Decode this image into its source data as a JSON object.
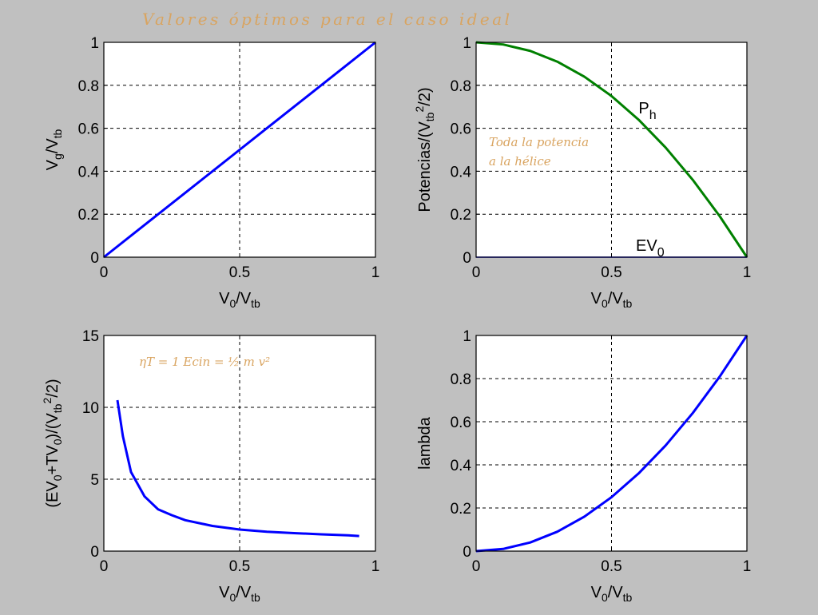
{
  "figure": {
    "handwritten_title": "Valores óptimos para el caso ideal",
    "background": "#c0c0c0",
    "colors": {
      "blue": "#0000ff",
      "green": "#008000",
      "handwriting": "#d9a460"
    }
  },
  "chart_data": [
    {
      "type": "line",
      "ylabel": "Vg/Vtb",
      "xlabel": "V0/Vtb",
      "xlim": [
        0,
        1
      ],
      "ylim": [
        0,
        1
      ],
      "x_ticks": [
        "0",
        "0.5",
        "1"
      ],
      "y_ticks": [
        "0",
        "0.2",
        "0.4",
        "0.6",
        "0.8",
        "1"
      ],
      "grid": true,
      "series": [
        {
          "color": "#0000ff",
          "x": [
            0,
            0.1,
            0.2,
            0.3,
            0.4,
            0.5,
            0.6,
            0.7,
            0.8,
            0.9,
            1.0
          ],
          "y": [
            0,
            0.1,
            0.2,
            0.3,
            0.4,
            0.5,
            0.6,
            0.7,
            0.8,
            0.9,
            1.0
          ]
        }
      ],
      "annotations": []
    },
    {
      "type": "line",
      "ylabel": "Potencias/(Vtb²/2)",
      "xlabel": "V0/Vtb",
      "xlim": [
        0,
        1
      ],
      "ylim": [
        0,
        1
      ],
      "x_ticks": [
        "0",
        "0.5",
        "1"
      ],
      "y_ticks": [
        "0",
        "0.2",
        "0.4",
        "0.6",
        "0.8",
        "1"
      ],
      "grid": true,
      "series": [
        {
          "name": "Ph",
          "color": "#008000",
          "x": [
            0,
            0.1,
            0.2,
            0.3,
            0.4,
            0.5,
            0.6,
            0.7,
            0.8,
            0.9,
            1.0
          ],
          "y": [
            1,
            0.99,
            0.96,
            0.91,
            0.84,
            0.75,
            0.64,
            0.51,
            0.36,
            0.19,
            0
          ]
        },
        {
          "name": "EV0",
          "color": "#0000ff",
          "x": [
            0,
            1
          ],
          "y": [
            0,
            0
          ]
        }
      ],
      "annotations": [
        {
          "text": "Ph",
          "x": 0.6,
          "y": 0.67
        },
        {
          "text": "EV0",
          "x": 0.59,
          "y": 0.03
        }
      ],
      "handwritten_note": [
        "Toda la potencia",
        "a la hélice"
      ]
    },
    {
      "type": "line",
      "ylabel": "(EV0+TV0)/(Vtb²/2)",
      "xlabel": "V0/Vtb",
      "xlim": [
        0,
        1
      ],
      "ylim": [
        0,
        15
      ],
      "x_ticks": [
        "0",
        "0.5",
        "1"
      ],
      "y_ticks": [
        "0",
        "5",
        "10",
        "15"
      ],
      "grid": true,
      "series": [
        {
          "color": "#0000ff",
          "x": [
            0.05,
            0.07,
            0.1,
            0.15,
            0.2,
            0.25,
            0.3,
            0.4,
            0.5,
            0.6,
            0.7,
            0.8,
            0.9,
            0.94
          ],
          "y": [
            10.5,
            8.0,
            5.5,
            3.8,
            2.9,
            2.5,
            2.15,
            1.75,
            1.5,
            1.35,
            1.25,
            1.17,
            1.1,
            1.05
          ]
        }
      ],
      "annotations": [],
      "handwritten_note": [
        "ηT = 1    Ecin = ½ m v²"
      ]
    },
    {
      "type": "line",
      "ylabel": "lambda",
      "xlabel": "V0/Vtb",
      "xlim": [
        0,
        1
      ],
      "ylim": [
        0,
        1
      ],
      "x_ticks": [
        "0",
        "0.5",
        "1"
      ],
      "y_ticks": [
        "0",
        "0.2",
        "0.4",
        "0.6",
        "0.8",
        "1"
      ],
      "grid": true,
      "series": [
        {
          "color": "#0000ff",
          "x": [
            0,
            0.1,
            0.2,
            0.3,
            0.4,
            0.5,
            0.6,
            0.7,
            0.8,
            0.9,
            1.0
          ],
          "y": [
            0,
            0.01,
            0.04,
            0.09,
            0.16,
            0.25,
            0.36,
            0.49,
            0.64,
            0.81,
            1.0
          ]
        }
      ],
      "annotations": []
    }
  ]
}
